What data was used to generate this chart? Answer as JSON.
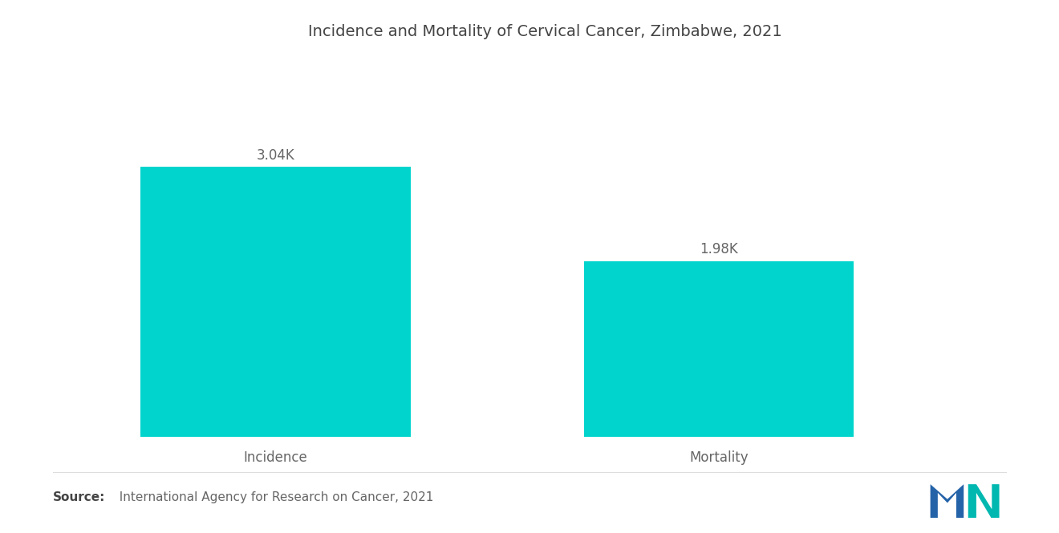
{
  "title": "Incidence and Mortality of Cervical Cancer, Zimbabwe, 2021",
  "categories": [
    "Incidence",
    "Mortality"
  ],
  "values": [
    3.04,
    1.98
  ],
  "value_labels": [
    "3.04K",
    "1.98K"
  ],
  "bar_color": "#00D4CC",
  "background_color": "#FFFFFF",
  "ylim": [
    0,
    4.2
  ],
  "bar_width": 0.28,
  "x_positions": [
    0.22,
    0.68
  ],
  "xlim": [
    0.0,
    1.0
  ],
  "source_bold": "Source:",
  "source_rest": "  International Agency for Research on Cancer, 2021",
  "title_fontsize": 14,
  "label_fontsize": 12,
  "value_fontsize": 12,
  "source_fontsize": 11,
  "text_color": "#666666",
  "title_color": "#444444"
}
